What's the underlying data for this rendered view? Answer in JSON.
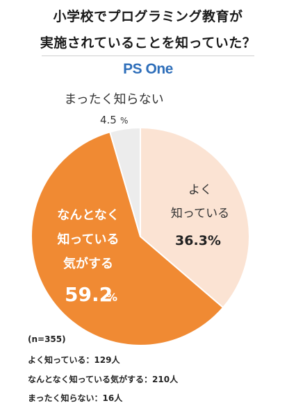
{
  "title_line1": "小学校でプログラミング教育が",
  "title_line2": "実施されていることを知っていた？",
  "brand": "PS One",
  "chart_data": {
    "type": "pie",
    "slices": [
      {
        "label": "よく\n知っている",
        "value": 36.3,
        "display": "36.3%",
        "color": "#fbe3d3"
      },
      {
        "label": "なんとなく\n知っている\n気がする",
        "value": 59.2,
        "display": "59.2",
        "unit": "%",
        "color": "#f08a33"
      },
      {
        "label": "まったく知らない",
        "value": 4.5,
        "display": "4.5",
        "unit": "%",
        "color": "#ececec"
      }
    ]
  },
  "notes": {
    "n": "(n=355)",
    "line1": "よく知っている：129人",
    "line2": "なんとなく知っている気がする：210人",
    "line3": "まったく知らない：16人"
  }
}
